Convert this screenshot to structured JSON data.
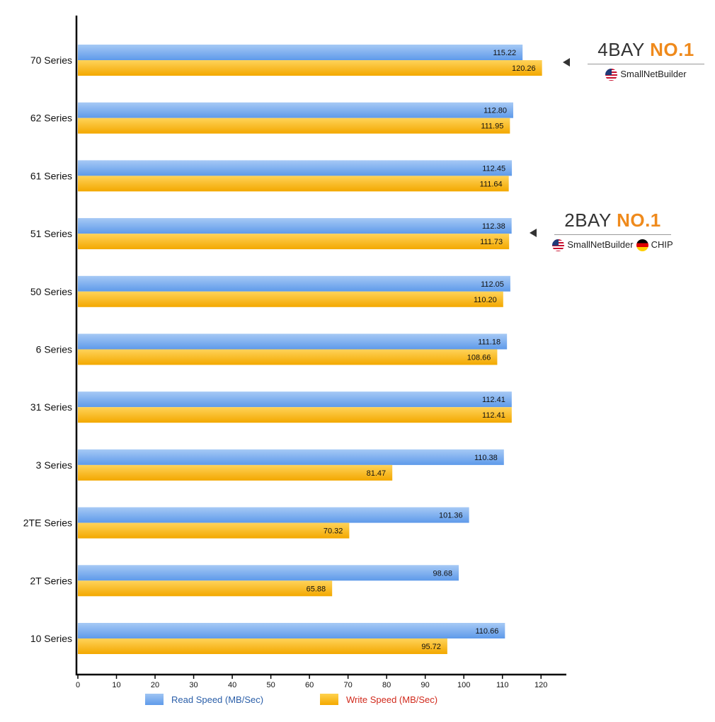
{
  "chart_data": {
    "type": "bar",
    "orientation": "horizontal",
    "categories": [
      "70 Series",
      "62 Series",
      "61 Series",
      "51 Series",
      "50 Series",
      "6 Series",
      "31 Series",
      "3 Series",
      "2TE Series",
      "2T Series",
      "10 Series"
    ],
    "series": [
      {
        "name": "Read Speed (MB/Sec)",
        "values": [
          115.22,
          112.8,
          112.45,
          112.38,
          112.05,
          111.18,
          112.41,
          110.38,
          101.36,
          98.68,
          110.66
        ]
      },
      {
        "name": "Write Speed (MB/Sec)",
        "values": [
          120.26,
          111.95,
          111.64,
          111.73,
          110.2,
          108.66,
          112.41,
          81.47,
          70.32,
          65.88,
          95.72
        ]
      }
    ],
    "value_labels": [
      [
        "115.22",
        "112.80",
        "112.45",
        "112.38",
        "112.05",
        "111.18",
        "112.41",
        "110.38",
        "101.36",
        "98.68",
        "110.66"
      ],
      [
        "120.26",
        "111.95",
        "111.64",
        "111.73",
        "110.20",
        "108.66",
        "112.41",
        "81.47",
        "70.32",
        "65.88",
        "95.72"
      ]
    ],
    "xlim": [
      0,
      127
    ],
    "xticks": [
      0,
      10,
      20,
      30,
      40,
      50,
      60,
      70,
      80,
      90,
      100,
      110,
      120
    ],
    "legend_position": "bottom",
    "grid": false,
    "colors": {
      "read": "#6fa6ee",
      "write": "#f9b811",
      "read_legend_text": "#2a5ea8",
      "write_legend_text": "#d12a1c",
      "highlight": "#ef8a1c"
    }
  },
  "badges": {
    "four_bay": {
      "prefix": "4BAY ",
      "highlight": "NO.1",
      "sources": [
        {
          "flag": "us-flag-icon",
          "label": "SmallNetBuilder"
        }
      ]
    },
    "two_bay": {
      "prefix": "2BAY ",
      "highlight": "NO.1",
      "sources": [
        {
          "flag": "us-flag-icon",
          "label": "SmallNetBuilder"
        },
        {
          "flag": "de-flag-icon",
          "label": "CHIP"
        }
      ]
    }
  }
}
